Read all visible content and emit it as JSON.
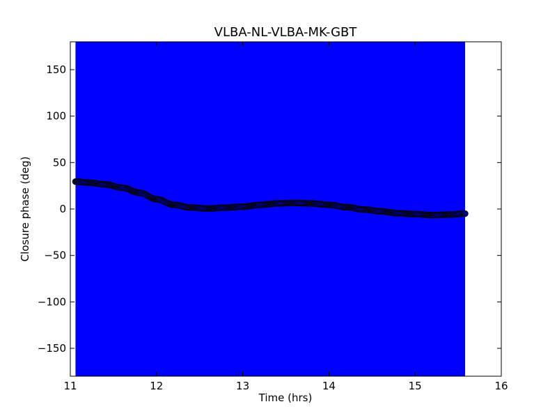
{
  "chart_data": {
    "type": "scatter",
    "title": "VLBA-NL-VLBA-MK-GBT",
    "xlabel": "Time (hrs)",
    "ylabel": "Closure phase (deg)",
    "xlim": [
      11,
      16
    ],
    "ylim": [
      -180,
      180
    ],
    "xticks": [
      11,
      12,
      13,
      14,
      15,
      16
    ],
    "yticks": [
      -150,
      -100,
      -50,
      0,
      50,
      100,
      150
    ],
    "ytick_labels": [
      "−150",
      "−100",
      "−50",
      "0",
      "50",
      "100",
      "150"
    ],
    "xtick_labels": [
      "11",
      "12",
      "13",
      "14",
      "15",
      "16"
    ],
    "grid": false,
    "legend": false,
    "colors": {
      "error_band": "#0000ff",
      "marker_fill": "#000080",
      "marker_edge": "#000000"
    },
    "error_band": {
      "x_range": [
        11.06,
        15.58
      ],
      "y_range": [
        -180,
        180
      ]
    },
    "series": [
      {
        "x": [
          11.06,
          11.2,
          11.4,
          11.6,
          11.8,
          12.0,
          12.2,
          12.4,
          12.6,
          12.8,
          13.0,
          13.2,
          13.4,
          13.6,
          13.8,
          14.0,
          14.2,
          14.4,
          14.6,
          14.8,
          15.0,
          15.2,
          15.4,
          15.58
        ],
        "y": [
          29.5,
          28.5,
          26.5,
          23,
          17.5,
          10.5,
          4.5,
          1.5,
          0.5,
          1.5,
          2.5,
          4.5,
          6,
          6.5,
          6,
          4.5,
          2,
          -0.5,
          -2.5,
          -4.5,
          -5.5,
          -6.5,
          -6,
          -5
        ]
      }
    ]
  }
}
